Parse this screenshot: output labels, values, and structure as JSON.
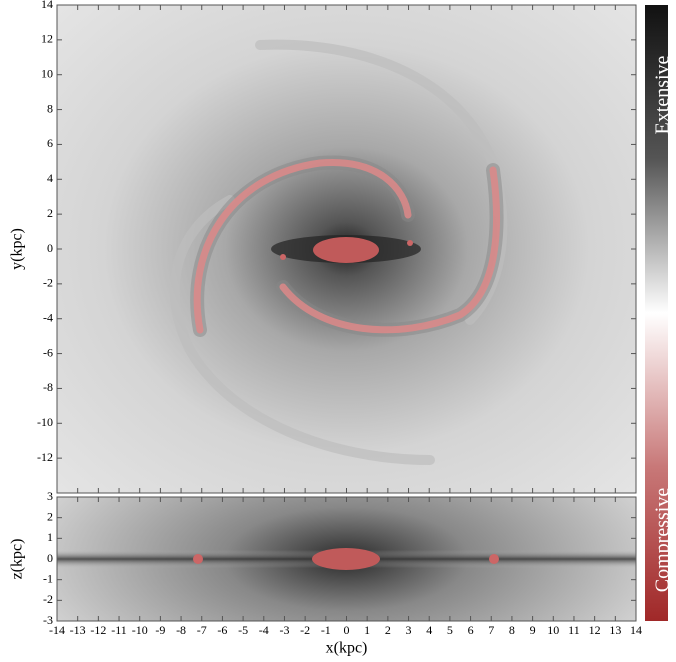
{
  "chart_data": [
    {
      "type": "heatmap",
      "ylabel": "y(kpc)",
      "xlim": [
        -14,
        14
      ],
      "ylim": [
        -14,
        14
      ],
      "xticks": [
        -14,
        -13,
        -12,
        -11,
        -10,
        -9,
        -8,
        -7,
        -6,
        -5,
        -4,
        -3,
        -2,
        -1,
        0,
        1,
        2,
        3,
        4,
        5,
        6,
        7,
        8,
        9,
        10,
        11,
        12,
        13,
        14
      ],
      "yticks": [
        -12,
        -10,
        -8,
        -6,
        -4,
        -2,
        0,
        2,
        4,
        6,
        8,
        10,
        12,
        14
      ]
    },
    {
      "type": "heatmap",
      "xlabel": "x(kpc)",
      "ylabel": "z(kpc)",
      "xlim": [
        -14,
        14
      ],
      "ylim": [
        -3,
        3
      ],
      "xticks": [
        -14,
        -13,
        -12,
        -11,
        -10,
        -9,
        -8,
        -7,
        -6,
        -5,
        -4,
        -3,
        -2,
        -1,
        0,
        1,
        2,
        3,
        4,
        5,
        6,
        7,
        8,
        9,
        10,
        11,
        12,
        13,
        14
      ],
      "yticks": [
        -3,
        -2,
        -1,
        0,
        1,
        2,
        3
      ]
    }
  ],
  "colorbar": {
    "labels": [
      "Extensive",
      "Compressive"
    ]
  }
}
